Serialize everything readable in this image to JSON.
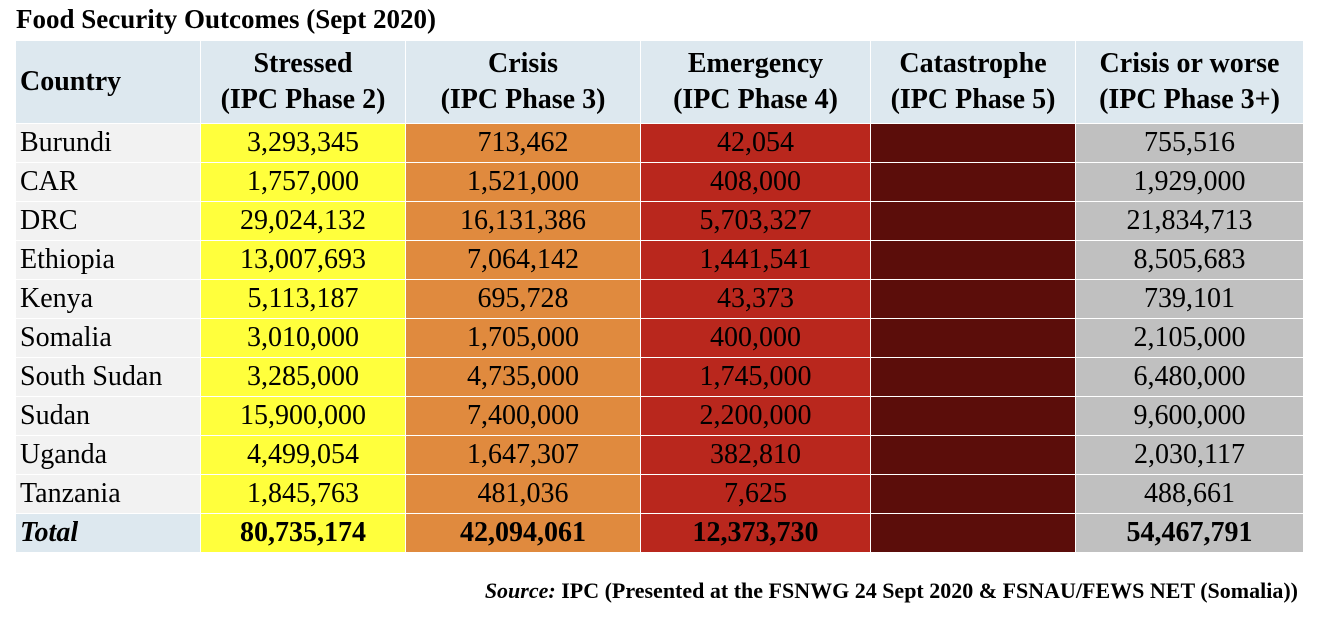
{
  "title": "Food Security Outcomes (Sept 2020)",
  "table": {
    "country_header": "Country",
    "headers": [
      {
        "line1": "Stressed",
        "line2": "(IPC Phase 2)"
      },
      {
        "line1": "Crisis",
        "line2": "(IPC Phase 3)"
      },
      {
        "line1": "Emergency",
        "line2": "(IPC Phase 4)"
      },
      {
        "line1": "Catastrophe",
        "line2": "(IPC Phase 5)"
      },
      {
        "line1": "Crisis or worse",
        "line2": "(IPC Phase 3+)"
      }
    ],
    "rows": [
      {
        "country": "Burundi",
        "stressed": "3,293,345",
        "crisis": "713,462",
        "emergency": "42,054",
        "crisis_or_worse": "755,516"
      },
      {
        "country": "CAR",
        "stressed": "1,757,000",
        "crisis": "1,521,000",
        "emergency": "408,000",
        "crisis_or_worse": "1,929,000"
      },
      {
        "country": "DRC",
        "stressed": "29,024,132",
        "crisis": "16,131,386",
        "emergency": "5,703,327",
        "crisis_or_worse": "21,834,713"
      },
      {
        "country": "Ethiopia",
        "stressed": "13,007,693",
        "crisis": "7,064,142",
        "emergency": "1,441,541",
        "crisis_or_worse": "8,505,683"
      },
      {
        "country": "Kenya",
        "stressed": "5,113,187",
        "crisis": "695,728",
        "emergency": "43,373",
        "crisis_or_worse": "739,101"
      },
      {
        "country": "Somalia",
        "stressed": "3,010,000",
        "crisis": "1,705,000",
        "emergency": "400,000",
        "crisis_or_worse": "2,105,000"
      },
      {
        "country": "South Sudan",
        "stressed": "3,285,000",
        "crisis": "4,735,000",
        "emergency": "1,745,000",
        "crisis_or_worse": "6,480,000"
      },
      {
        "country": "Sudan",
        "stressed": "15,900,000",
        "crisis": "7,400,000",
        "emergency": "2,200,000",
        "crisis_or_worse": "9,600,000"
      },
      {
        "country": "Uganda",
        "stressed": "4,499,054",
        "crisis": "1,647,307",
        "emergency": "382,810",
        "crisis_or_worse": "2,030,117"
      },
      {
        "country": "Tanzania",
        "stressed": "1,845,763",
        "crisis": "481,036",
        "emergency": "7,625",
        "crisis_or_worse": "488,661"
      }
    ],
    "total": {
      "country": "Total",
      "stressed": "80,735,174",
      "crisis": "42,094,061",
      "emergency": "12,373,730",
      "crisis_or_worse": "54,467,791"
    }
  },
  "source": {
    "label": "Source:",
    "text": "IPC (Presented at the FSNWG 24 Sept 2020 & FSNAU/FEWS NET (Somalia))"
  }
}
